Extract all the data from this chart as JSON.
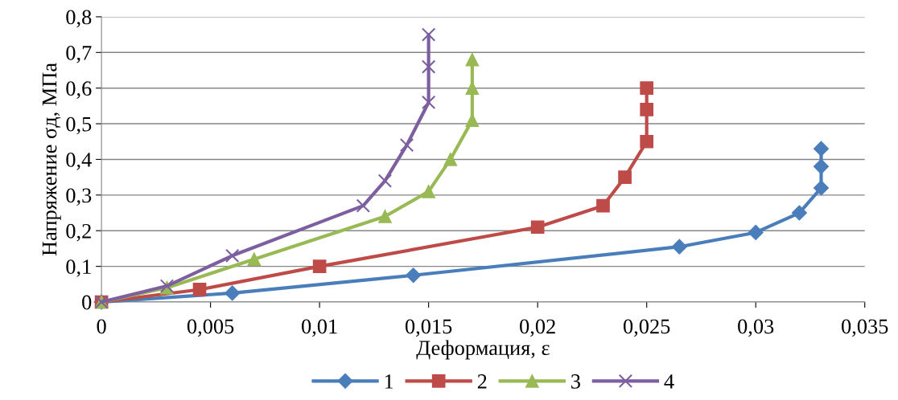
{
  "chart_data": {
    "type": "line",
    "xlabel": "Деформация, ε",
    "ylabel": "Напряжение σд, МПа",
    "xlim": [
      0,
      0.035
    ],
    "ylim": [
      0,
      0.8
    ],
    "xticks": [
      0,
      {
        "value": 0.005,
        "label": "0,005"
      },
      {
        "value": 0.01,
        "label": "0,01"
      },
      {
        "value": 0.015,
        "label": "0,015"
      },
      {
        "value": 0.02,
        "label": "0,02"
      },
      {
        "value": 0.025,
        "label": "0,025"
      },
      {
        "value": 0.03,
        "label": "0,03"
      },
      {
        "value": 0.035,
        "label": "0,035"
      }
    ],
    "yticks": [
      0,
      {
        "value": 0.1,
        "label": "0,1"
      },
      {
        "value": 0.2,
        "label": "0,2"
      },
      {
        "value": 0.3,
        "label": "0,3"
      },
      {
        "value": 0.4,
        "label": "0,4"
      },
      {
        "value": 0.5,
        "label": "0,5"
      },
      {
        "value": 0.6,
        "label": "0,6"
      },
      {
        "value": 0.7,
        "label": "0,7"
      },
      {
        "value": 0.8,
        "label": "0,8"
      }
    ],
    "grid": "y",
    "legend": "bottom",
    "line_style": "solid",
    "series": [
      {
        "name": "1",
        "color": "#4a7ebb",
        "marker": "diamond",
        "x": [
          0,
          0.006,
          0.0143,
          0.0265,
          0.03,
          0.032,
          0.033,
          0.033,
          0.033
        ],
        "values": [
          0,
          0.025,
          0.075,
          0.155,
          0.195,
          0.25,
          0.32,
          0.38,
          0.43
        ]
      },
      {
        "name": "2",
        "color": "#be4b48",
        "marker": "square",
        "x": [
          0,
          0.0045,
          0.01,
          0.02,
          0.023,
          0.024,
          0.025,
          0.025,
          0.025
        ],
        "values": [
          0,
          0.035,
          0.1,
          0.21,
          0.27,
          0.35,
          0.45,
          0.54,
          0.6
        ]
      },
      {
        "name": "3",
        "color": "#98b954",
        "marker": "triangle",
        "x": [
          0,
          0.003,
          0.007,
          0.013,
          0.015,
          0.016,
          0.017,
          0.017,
          0.017
        ],
        "values": [
          0,
          0.04,
          0.12,
          0.24,
          0.31,
          0.4,
          0.51,
          0.6,
          0.68
        ]
      },
      {
        "name": "4",
        "color": "#7d5fa0",
        "marker": "cross",
        "x": [
          0,
          0.003,
          0.006,
          0.012,
          0.013,
          0.014,
          0.015,
          0.015,
          0.015
        ],
        "values": [
          0,
          0.045,
          0.13,
          0.27,
          0.34,
          0.44,
          0.56,
          0.66,
          0.75
        ]
      }
    ]
  }
}
